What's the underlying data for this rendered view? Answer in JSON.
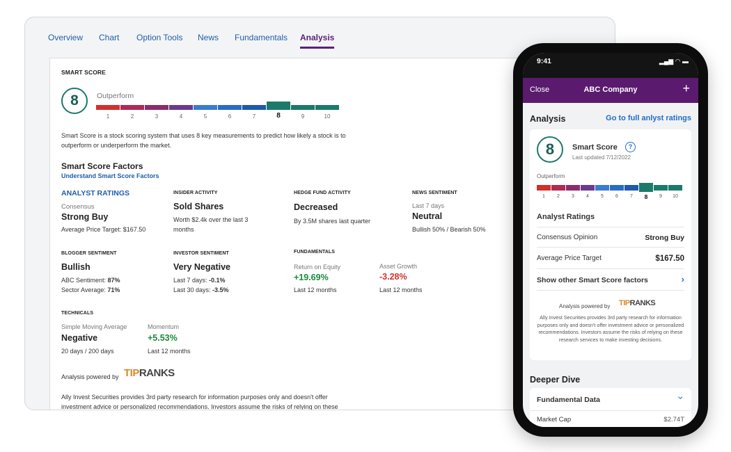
{
  "tabs": [
    "Overview",
    "Chart",
    "Option Tools",
    "News",
    "Fundamentals",
    "Analysis"
  ],
  "active_tab": "Analysis",
  "smart_score": {
    "heading": "SMART SCORE",
    "score": "8",
    "rating": "Outperform",
    "scale": [
      "1",
      "2",
      "3",
      "4",
      "5",
      "6",
      "7",
      "8",
      "9",
      "10"
    ],
    "selected": 8,
    "scale_colors": [
      "#d0312d",
      "#b02a52",
      "#8b2d6d",
      "#6a3a8f",
      "#3b7bd0",
      "#2a6cc4",
      "#1f59aa",
      "#1c7a6a",
      "#1c7a6a",
      "#1c7a6a"
    ],
    "description": "Smart Score is a stock scoring system that uses 8 key measurements to predict how likely a stock is to outperform or underperform the market."
  },
  "factors": {
    "title": "Smart Score Factors",
    "link": "Understand Smart Score Factors",
    "analyst": {
      "heading": "ANALYST RATINGS",
      "label": "Consensus",
      "value": "Strong Buy",
      "detail": "Average Price Target: $167.50"
    },
    "insider": {
      "heading": "INSIDER ACTIVITY",
      "value": "Sold Shares",
      "detail": "Worth $2.4k over the last 3 months"
    },
    "hedge": {
      "heading": "HEDGE FUND ACTIVITY",
      "value": "Decreased",
      "detail": "By 3.5M shares last quarter"
    },
    "news": {
      "heading": "NEWS SENTIMENT",
      "label": "Last 7 days",
      "value": "Neutral",
      "detail": "Bullish 50% / Bearish 50%"
    },
    "blogger": {
      "heading": "BLOGGER SENTIMENT",
      "value": "Bullish",
      "line1_label": "ABC Sentiment: ",
      "line1_value": "87%",
      "line2_label": "Sector Average: ",
      "line2_value": "71%"
    },
    "investor": {
      "heading": "INVESTOR SENTIMENT",
      "value": "Very Negative",
      "line1_label": "Last 7 days: ",
      "line1_value": "-0.1%",
      "line2_label": "Last 30 days: ",
      "line2_value": "-3.5%"
    },
    "fundamentals": {
      "heading": "FUNDAMENTALS",
      "roe_label": "Return on Equity",
      "roe_value": "+19.69%",
      "roe_detail": "Last 12 months",
      "ag_label": "Asset Growth",
      "ag_value": "-3.28%",
      "ag_detail": "Last 12 months"
    },
    "technicals": {
      "heading": "TECHNICALS",
      "sma_label": "Simple Moving Average",
      "sma_value": "Negative",
      "sma_detail": "20 days / 200 days",
      "mom_label": "Momentum",
      "mom_value": "+5.53%",
      "mom_detail": "Last 12 months"
    }
  },
  "powered_by": "Analysis powered by",
  "tipranks_logo": "TIPRANKS",
  "disclaimer": "Ally Invest Securities provides 3rd party research for information purposes only and doesn't offer investment advice or personalized recommendations. Investors assume the risks of relying on these",
  "phone": {
    "time": "9:41",
    "close": "Close",
    "company": "ABC Company",
    "plus": "+",
    "analysis_title": "Analysis",
    "full_link": "Go to full anlyst ratings",
    "smart_score_label": "Smart Score",
    "help_icon": "?",
    "last_updated": "Last updated 7/12/2022",
    "outperform": "Outperform",
    "analyst_ratings": "Analyst Ratings",
    "consensus_label": "Consensus Opinion",
    "consensus_value": "Strong Buy",
    "apt_label": "Average Price Target",
    "apt_value": "$167.50",
    "show_other": "Show other Smart Score factors",
    "powered_by": "Analysis powered by",
    "disclaimer": "Ally Invest Securities provides 3rd party research for information purposes only and doesn't offer investment advice or personalized recommendations. Investors assume the risks of relying on these research services to make investing decisions.",
    "deeper_dive": "Deeper Dive",
    "fundamental_data": "Fundamental Data",
    "market_cap_label": "Market Cap",
    "market_cap_value": "$2.74T"
  }
}
